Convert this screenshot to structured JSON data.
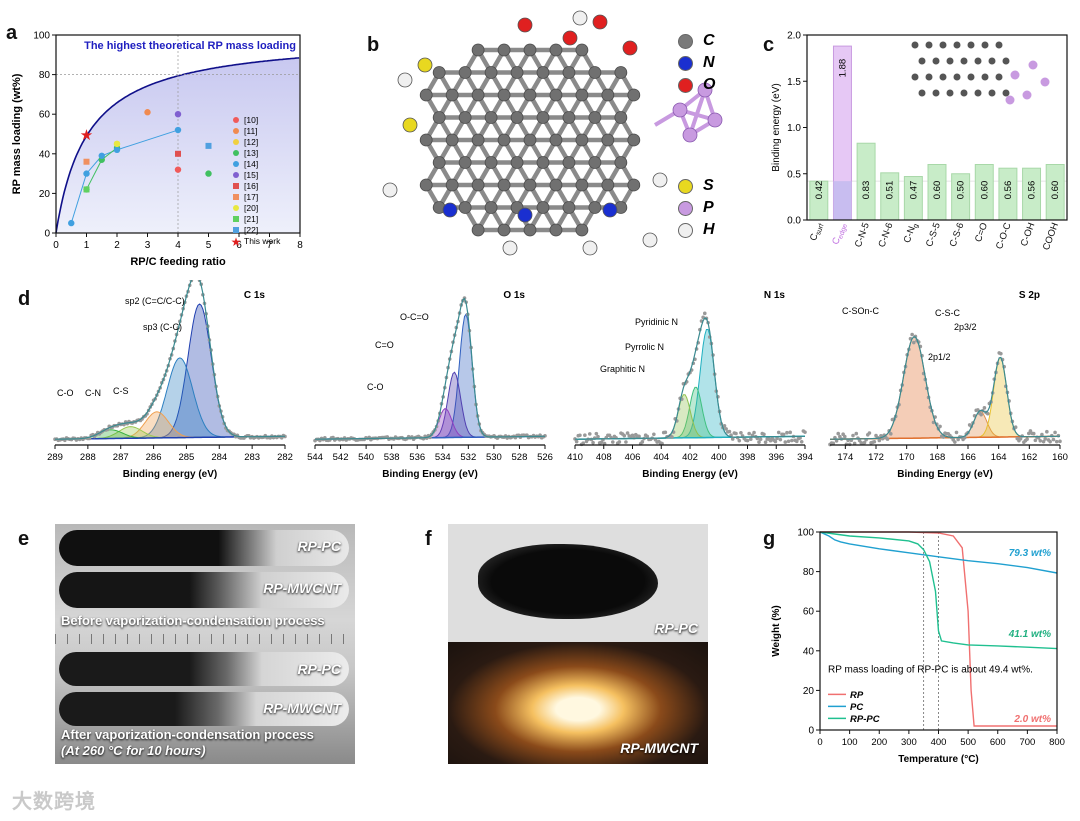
{
  "panels": {
    "a": "a",
    "b": "b",
    "c": "c",
    "d": "d",
    "e": "e",
    "f": "f",
    "g": "g"
  },
  "panel_a": {
    "title_line": "The highest theoretical RP mass loading",
    "legend": [
      "[10]",
      "[11]",
      "[12]",
      "[13]",
      "[14]",
      "[15]",
      "[16]",
      "[17]",
      "[20]",
      "[21]",
      "[22]",
      "This work"
    ],
    "colors": [
      "#f05a5a",
      "#f08a50",
      "#f0d040",
      "#40c060",
      "#40a0e0",
      "#8060d0",
      "#e05050",
      "#f09060",
      "#e8e840",
      "#60d060",
      "#50a0e0",
      "#e02020"
    ]
  },
  "panel_b": {
    "legend": [
      {
        "sym": "C",
        "color": "#7a7a7a"
      },
      {
        "sym": "N",
        "color": "#1a2fd0"
      },
      {
        "sym": "O",
        "color": "#e02020"
      },
      {
        "sym": "S",
        "color": "#e8d820"
      },
      {
        "sym": "P",
        "color": "#c89ae0"
      },
      {
        "sym": "H",
        "color": "#f0f0f0"
      }
    ]
  },
  "panel_e": {
    "top_tube1": "RP-PC",
    "top_tube2": "RP-MWCNT",
    "before_text": "Before vaporization-condensation process",
    "bottom_tube1": "RP-PC",
    "bottom_tube2": "RP-MWCNT",
    "after_text": "After vaporization-condensation process",
    "after_text2": "(At 260 °C for 10 hours)"
  },
  "panel_f": {
    "top": "RP-PC",
    "bottom": "RP-MWCNT"
  },
  "watermark": "大数跨境",
  "chart_data": [
    {
      "id": "a",
      "type": "scatter",
      "xlabel": "RP/C feeding ratio",
      "ylabel": "RP mass loading (wt%)",
      "xlim": [
        0,
        8
      ],
      "ylim": [
        0,
        100
      ],
      "xticks": [
        0,
        1,
        2,
        3,
        4,
        5,
        6,
        7,
        8
      ],
      "yticks": [
        0,
        20,
        40,
        60,
        80,
        100
      ],
      "theory_curve_label": "The highest theoretical RP mass loading",
      "series": [
        {
          "name": "[10]",
          "points": [
            [
              4,
              32
            ]
          ]
        },
        {
          "name": "[11]",
          "points": [
            [
              3,
              61
            ]
          ]
        },
        {
          "name": "[12]",
          "points": [
            [
              2,
              45
            ]
          ]
        },
        {
          "name": "[13]",
          "points": [
            [
              1,
              22
            ],
            [
              1.5,
              37
            ],
            [
              2,
              43
            ],
            [
              5,
              30
            ]
          ]
        },
        {
          "name": "[14]",
          "points": [
            [
              0.5,
              5
            ],
            [
              1,
              30
            ],
            [
              1.5,
              39
            ],
            [
              2,
              42
            ],
            [
              4,
              52
            ]
          ]
        },
        {
          "name": "[15]",
          "points": [
            [
              4,
              60
            ]
          ]
        },
        {
          "name": "[16]",
          "points": [
            [
              4,
              40
            ]
          ]
        },
        {
          "name": "[17]",
          "points": [
            [
              1,
              36
            ]
          ]
        },
        {
          "name": "[20]",
          "points": [
            [
              2,
              45
            ]
          ]
        },
        {
          "name": "[21]",
          "points": [
            [
              1,
              22
            ]
          ]
        },
        {
          "name": "[22]",
          "points": [
            [
              5,
              44
            ]
          ]
        },
        {
          "name": "This work",
          "points": [
            [
              1,
              49.4
            ]
          ]
        }
      ]
    },
    {
      "id": "c",
      "type": "bar",
      "ylabel": "Binding energy (eV)",
      "ylim": [
        0,
        2.0
      ],
      "yticks": [
        0.0,
        0.5,
        1.0,
        1.5,
        2.0
      ],
      "categories": [
        "Csurf",
        "Cedge",
        "C-N-5",
        "C-N-6",
        "C-Ng",
        "C-S-5",
        "C-S-6",
        "C=O",
        "C-O-C",
        "C-OH",
        "COOH"
      ],
      "tick_labels": [
        {
          "main": "C",
          "sub": "surf"
        },
        {
          "main": "C",
          "sub": "edge"
        },
        {
          "main": "C-N-5",
          "sub": ""
        },
        {
          "main": "C-N-6",
          "sub": ""
        },
        {
          "main": "C-N",
          "sub": "g"
        },
        {
          "main": "C-S-5",
          "sub": ""
        },
        {
          "main": "C-S-6",
          "sub": ""
        },
        {
          "main": "C=O",
          "sub": ""
        },
        {
          "main": "C-O-C",
          "sub": ""
        },
        {
          "main": "C-OH",
          "sub": ""
        },
        {
          "main": "COOH",
          "sub": ""
        }
      ],
      "values": [
        0.42,
        1.88,
        0.83,
        0.51,
        0.47,
        0.6,
        0.5,
        0.6,
        0.56,
        0.56,
        0.6
      ],
      "labels": [
        "0.42",
        "1.88",
        "0.83",
        "0.51",
        "0.47",
        "0.60",
        "0.50",
        "0.60",
        "0.56",
        "0.56",
        "0.60"
      ],
      "highlight_index": 1
    },
    {
      "id": "d1",
      "type": "line",
      "title": "C 1s",
      "xlabel": "Binding energy (eV)",
      "xlim": [
        289,
        282
      ],
      "xticks": [
        289,
        288,
        287,
        286,
        285,
        284,
        283,
        282
      ],
      "peaks": [
        {
          "name": "sp2 (C=C/C-C)",
          "center": 284.6,
          "height": 0.92,
          "width": 0.5
        },
        {
          "name": "sp3 (C-C)",
          "center": 285.2,
          "height": 0.55,
          "width": 0.55
        },
        {
          "name": "C-S",
          "center": 285.9,
          "height": 0.18,
          "width": 0.5
        },
        {
          "name": "C-N",
          "center": 286.7,
          "height": 0.08,
          "width": 0.5
        },
        {
          "name": "C-O",
          "center": 287.3,
          "height": 0.06,
          "width": 0.5
        }
      ],
      "annotations": [
        "sp2 (C=C/C-C)",
        "sp3 (C-C)",
        "C-S",
        "C-N",
        "C-O"
      ]
    },
    {
      "id": "d2",
      "type": "line",
      "title": "O 1s",
      "xlabel": "Binding Energy (eV)",
      "xlim": [
        544,
        526
      ],
      "xticks": [
        544,
        542,
        540,
        538,
        536,
        534,
        532,
        530,
        528,
        526
      ],
      "peaks": [
        {
          "name": "O-C=O",
          "center": 532.2,
          "height": 0.85,
          "width": 0.7
        },
        {
          "name": "C=O",
          "center": 533.1,
          "height": 0.45,
          "width": 0.7
        },
        {
          "name": "C-O",
          "center": 533.8,
          "height": 0.2,
          "width": 0.7
        }
      ],
      "annotations": [
        "O-C=O",
        "C=O",
        "C-O"
      ]
    },
    {
      "id": "d3",
      "type": "line",
      "title": "N 1s",
      "xlabel": "Binding Energy (eV)",
      "xlim": [
        410,
        394
      ],
      "xticks": [
        410,
        408,
        406,
        404,
        402,
        400,
        398,
        396,
        394
      ],
      "peaks": [
        {
          "name": "Pyridinic N",
          "center": 400.8,
          "height": 0.75,
          "width": 0.7
        },
        {
          "name": "Pyrrolic N",
          "center": 401.6,
          "height": 0.35,
          "width": 0.6
        },
        {
          "name": "Graphitic N",
          "center": 402.4,
          "height": 0.3,
          "width": 0.6
        }
      ],
      "annotations": [
        "Pyridinic N",
        "Pyrrolic N",
        "Graphitic N"
      ]
    },
    {
      "id": "d4",
      "type": "line",
      "title": "S 2p",
      "xlabel": "Binding Energy (eV)",
      "xlim": [
        175,
        160
      ],
      "xticks": [
        174,
        172,
        170,
        168,
        166,
        164,
        162,
        160
      ],
      "peaks": [
        {
          "name": "C-SOn-C",
          "center": 169.5,
          "height": 0.7,
          "width": 1.0
        },
        {
          "name": "2p1/2",
          "center": 165.2,
          "height": 0.18,
          "width": 0.6
        },
        {
          "name": "2p3/2",
          "center": 163.9,
          "height": 0.55,
          "width": 0.6
        }
      ],
      "annotations": [
        "C-SOn-C",
        "C-S-C",
        "2p1/2",
        "2p3/2"
      ]
    },
    {
      "id": "g",
      "type": "line",
      "xlabel": "Temperature (°C)",
      "ylabel": "Weight (%)",
      "xlim": [
        0,
        800
      ],
      "ylim": [
        0,
        100
      ],
      "xticks": [
        0,
        100,
        200,
        300,
        400,
        500,
        600,
        700,
        800
      ],
      "yticks": [
        0,
        20,
        40,
        60,
        80,
        100
      ],
      "series": [
        {
          "name": "RP",
          "color": "#f07070",
          "x": [
            0,
            100,
            200,
            300,
            400,
            450,
            480,
            500,
            510,
            520,
            800
          ],
          "y": [
            100,
            100,
            100,
            100,
            99.5,
            98,
            92,
            60,
            20,
            2,
            2
          ]
        },
        {
          "name": "PC",
          "color": "#20a0d0",
          "x": [
            0,
            30,
            50,
            70,
            100,
            200,
            300,
            400,
            500,
            600,
            700,
            800
          ],
          "y": [
            100,
            98,
            96,
            95,
            94,
            91.5,
            89.5,
            87.5,
            85.5,
            84,
            82,
            79.3
          ]
        },
        {
          "name": "RP-PC",
          "color": "#20c090",
          "x": [
            0,
            50,
            100,
            200,
            300,
            330,
            350,
            370,
            390,
            400,
            410,
            450,
            500,
            600,
            700,
            800
          ],
          "y": [
            100,
            99,
            98,
            97,
            95.5,
            94,
            91,
            85,
            70,
            50,
            45,
            44,
            43,
            42.5,
            41.8,
            41.1
          ]
        }
      ],
      "annotations": {
        "pc_end": "79.3 wt%",
        "rppc_end": "41.1 wt%",
        "rp_end": "2.0 wt%",
        "note": "RP mass loading of RP-PC is about 49.4 wt%."
      },
      "vlines": [
        350,
        400
      ]
    }
  ]
}
